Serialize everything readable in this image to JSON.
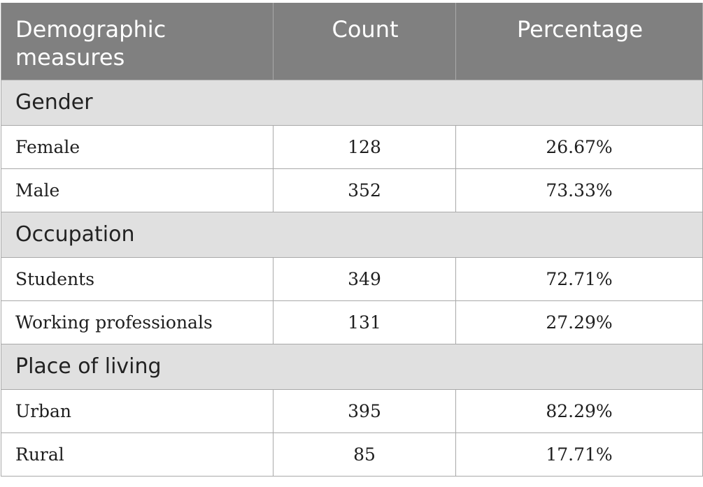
{
  "table": {
    "headers": [
      "Demographic measures",
      "Count",
      "Percentage"
    ],
    "sections": [
      {
        "title": "Gender",
        "rows": [
          {
            "label": "Female",
            "count": "128",
            "percentage": "26.67%"
          },
          {
            "label": "Male",
            "count": "352",
            "percentage": "73.33%"
          }
        ]
      },
      {
        "title": "Occupation",
        "rows": [
          {
            "label": "Students",
            "count": "349",
            "percentage": "72.71%"
          },
          {
            "label": "Working professionals",
            "count": "131",
            "percentage": "27.29%"
          }
        ]
      },
      {
        "title": "Place of living",
        "rows": [
          {
            "label": "Urban",
            "count": "395",
            "percentage": "82.29%"
          },
          {
            "label": "Rural",
            "count": "85",
            "percentage": "17.71%"
          }
        ]
      }
    ]
  }
}
